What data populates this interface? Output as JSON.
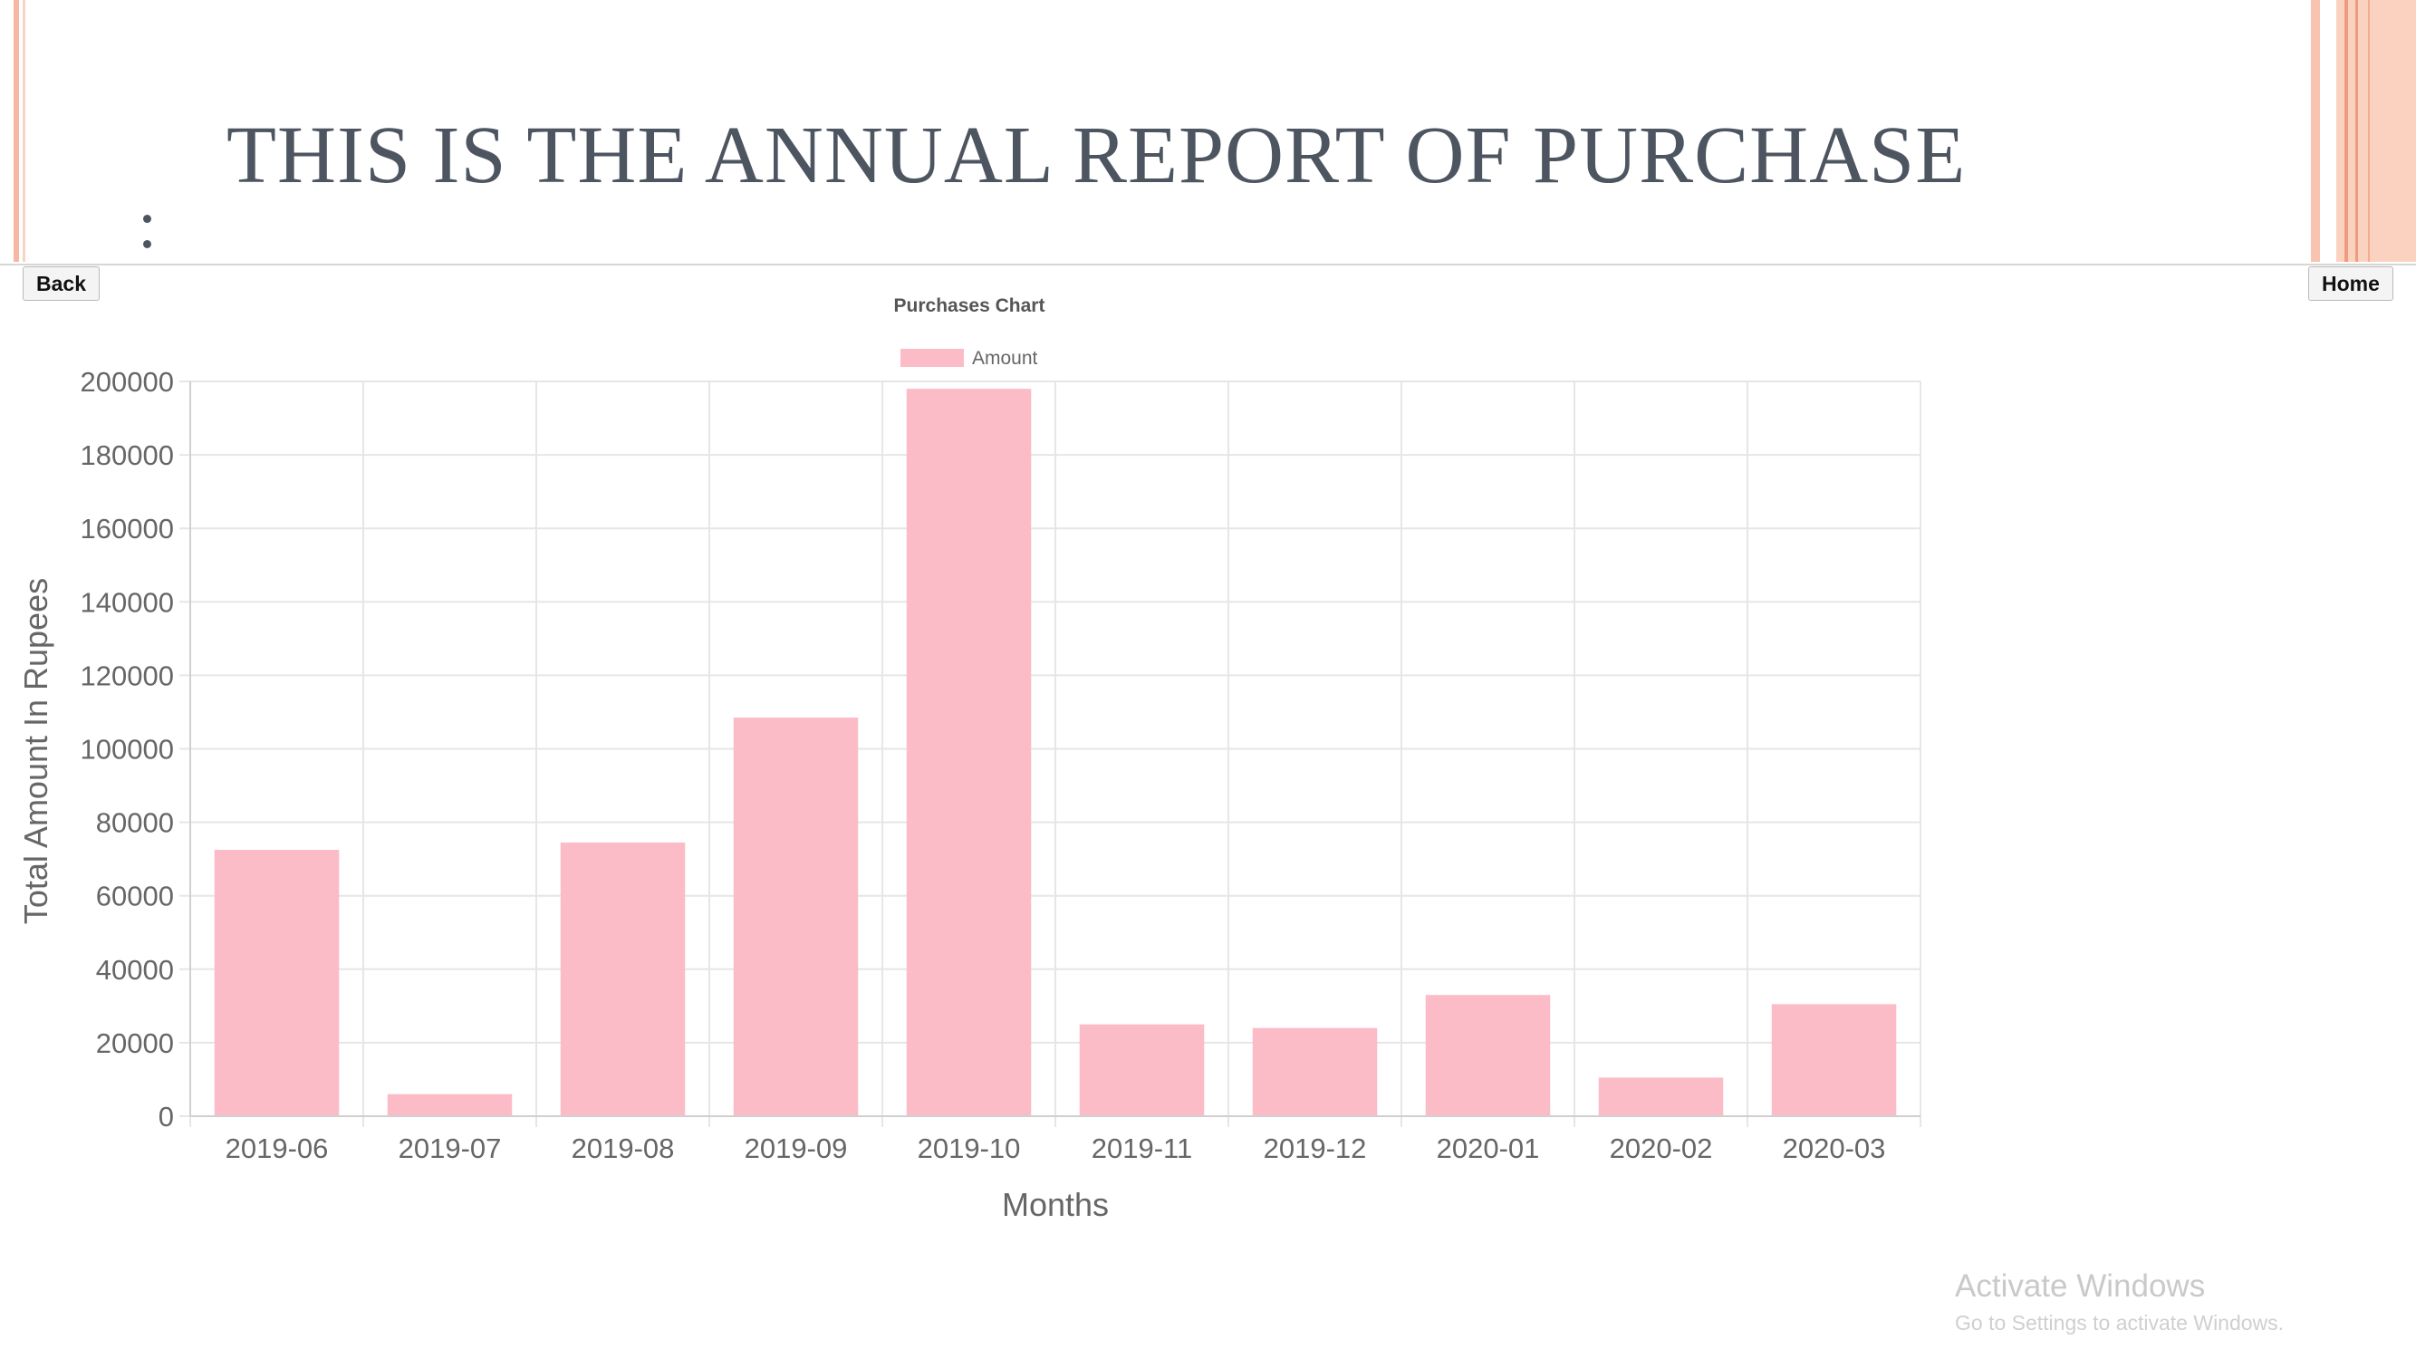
{
  "slide": {
    "title": "THIS IS THE ANNUAL REPORT OF PURCHASE",
    "colon": ":"
  },
  "buttons": {
    "back": "Back",
    "home": "Home"
  },
  "chart_data": {
    "type": "bar",
    "title": "Purchases Chart",
    "xlabel": "Months",
    "ylabel": "Total Amount In Rupees",
    "categories": [
      "2019-06",
      "2019-07",
      "2019-08",
      "2019-09",
      "2019-10",
      "2019-11",
      "2019-12",
      "2020-01",
      "2020-02",
      "2020-03"
    ],
    "series": [
      {
        "name": "Amount",
        "values": [
          72500,
          6000,
          74500,
          108500,
          198000,
          25000,
          24000,
          33000,
          10500,
          30500
        ],
        "color": "#fbbcc8"
      }
    ],
    "ylim": [
      0,
      200000
    ],
    "yticks": [
      0,
      20000,
      40000,
      60000,
      80000,
      100000,
      120000,
      140000,
      160000,
      180000,
      200000
    ],
    "grid": true,
    "legend": "top-center"
  },
  "watermark": {
    "title": "Activate Windows",
    "subtitle": "Go to Settings to activate Windows."
  },
  "colors": {
    "title_text": "#4d5561",
    "accent_stripe": "#f6b8a2",
    "bar_fill": "#fbbcc8"
  }
}
